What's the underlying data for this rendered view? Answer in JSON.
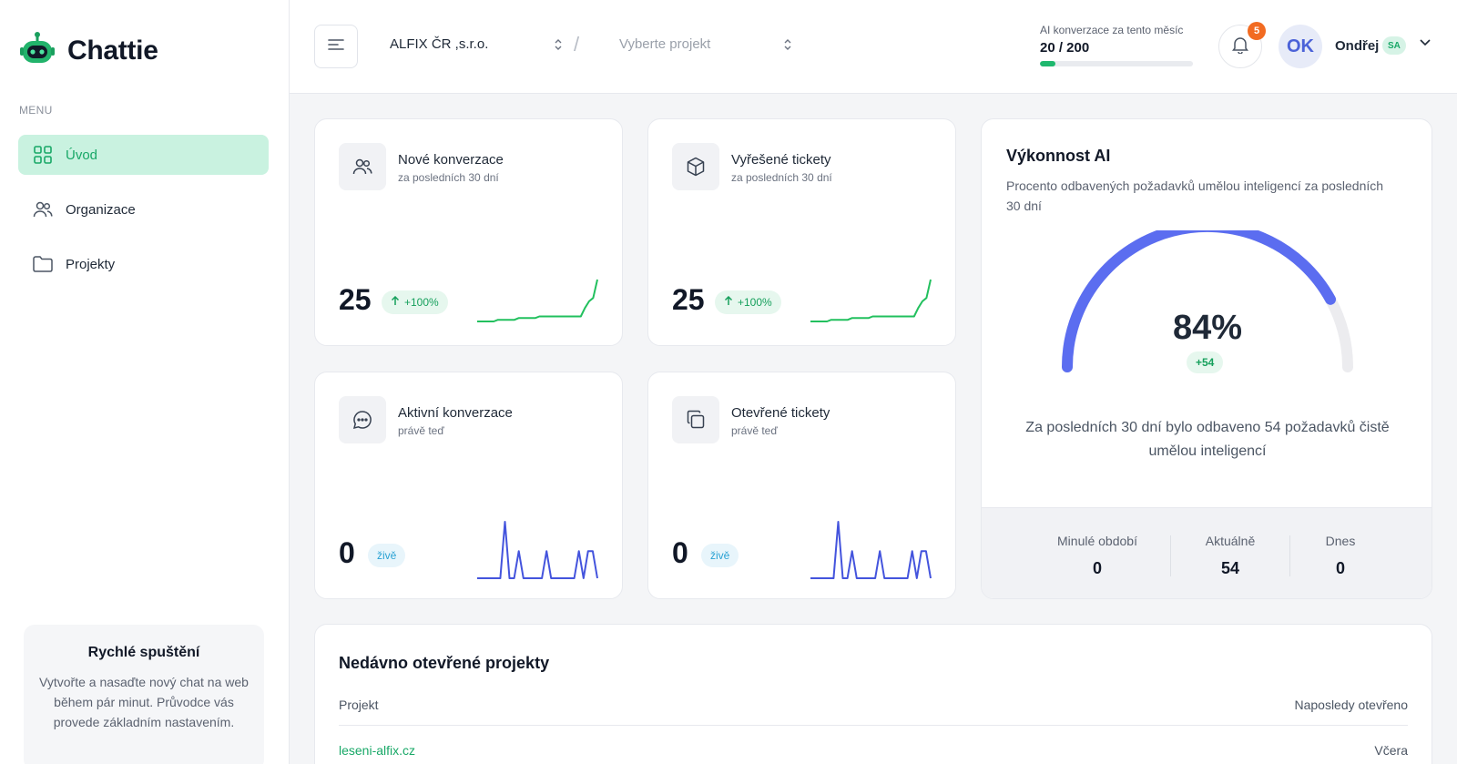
{
  "app": {
    "name": "Chattie"
  },
  "sidebar": {
    "menu_label": "MENU",
    "items": [
      {
        "label": "Úvod",
        "icon": "grid-icon",
        "active": true
      },
      {
        "label": "Organizace",
        "icon": "users-icon",
        "active": false
      },
      {
        "label": "Projekty",
        "icon": "folder-icon",
        "active": false
      }
    ],
    "quick_start": {
      "title": "Rychlé spuštění",
      "text": "Vytvořte a nasaďte nový chat na web během pár minut. Průvodce vás provede základním nastavením."
    }
  },
  "header": {
    "organization": "ALFIX ČR ,s.r.o.",
    "project_placeholder": "Vyberte projekt",
    "usage_label": "AI konverzace za tento měsíc",
    "usage_value": "20 / 200",
    "usage_fraction": 0.1,
    "notifications_count": "5",
    "user_initials": "OK",
    "user_name": "Ondřej",
    "user_role": "SA"
  },
  "cards": [
    {
      "title": "Nové konverzace",
      "subtitle": "za posledních 30 dní",
      "value": "25",
      "badge": "+100%",
      "icon": "users-icon",
      "spark": [
        0,
        0,
        0,
        0,
        0,
        1,
        1,
        1,
        1,
        1,
        2,
        2,
        2,
        2,
        2,
        3,
        3,
        3,
        3,
        3,
        3,
        3,
        3,
        3,
        3,
        3,
        8,
        12,
        14,
        25
      ]
    },
    {
      "title": "Vyřešené tickety",
      "subtitle": "za posledních 30 dní",
      "value": "25",
      "badge": "+100%",
      "icon": "box-icon",
      "spark": [
        0,
        0,
        0,
        0,
        0,
        1,
        1,
        1,
        1,
        1,
        2,
        2,
        2,
        2,
        2,
        3,
        3,
        3,
        3,
        3,
        3,
        3,
        3,
        3,
        3,
        3,
        8,
        12,
        14,
        25
      ]
    },
    {
      "title": "Aktivní konverzace",
      "subtitle": "právě teď",
      "value": "0",
      "badge": "živě",
      "icon": "chat-icon",
      "spark": [
        0,
        0,
        0,
        0,
        0,
        0,
        25,
        0,
        0,
        12,
        0,
        0,
        0,
        0,
        0,
        12,
        0,
        0,
        0,
        0,
        0,
        0,
        12,
        0,
        12,
        12,
        0
      ]
    },
    {
      "title": "Otevřené tickety",
      "subtitle": "právě teď",
      "value": "0",
      "badge": "živě",
      "icon": "copy-icon",
      "spark": [
        0,
        0,
        0,
        0,
        0,
        0,
        25,
        0,
        0,
        12,
        0,
        0,
        0,
        0,
        0,
        12,
        0,
        0,
        0,
        0,
        0,
        0,
        12,
        0,
        12,
        12,
        0
      ]
    }
  ],
  "ai": {
    "title": "Výkonnost AI",
    "description": "Procento odbavených požadavků umělou inteligencí za posledních 30 dní",
    "percent": "84%",
    "percent_value": 0.84,
    "delta": "+54",
    "note": "Za posledních 30 dní bylo odbaveno 54 požadavků čistě umělou inteligencí",
    "stats": [
      {
        "label": "Minulé období",
        "value": "0"
      },
      {
        "label": "Aktuálně",
        "value": "54"
      },
      {
        "label": "Dnes",
        "value": "0"
      }
    ]
  },
  "recent": {
    "title": "Nedávno otevřené projekty",
    "col_project": "Projekt",
    "col_opened": "Naposledy otevřeno",
    "rows": [
      {
        "project": "leseni-alfix.cz",
        "opened": "Včera"
      }
    ]
  },
  "colors": {
    "accent": "#18a867",
    "accent_bg": "#c9f2e0",
    "gauge": "#5b6df0",
    "spark_green": "#22c05e",
    "spark_blue": "#4454dd",
    "badge": "#f26b21"
  }
}
